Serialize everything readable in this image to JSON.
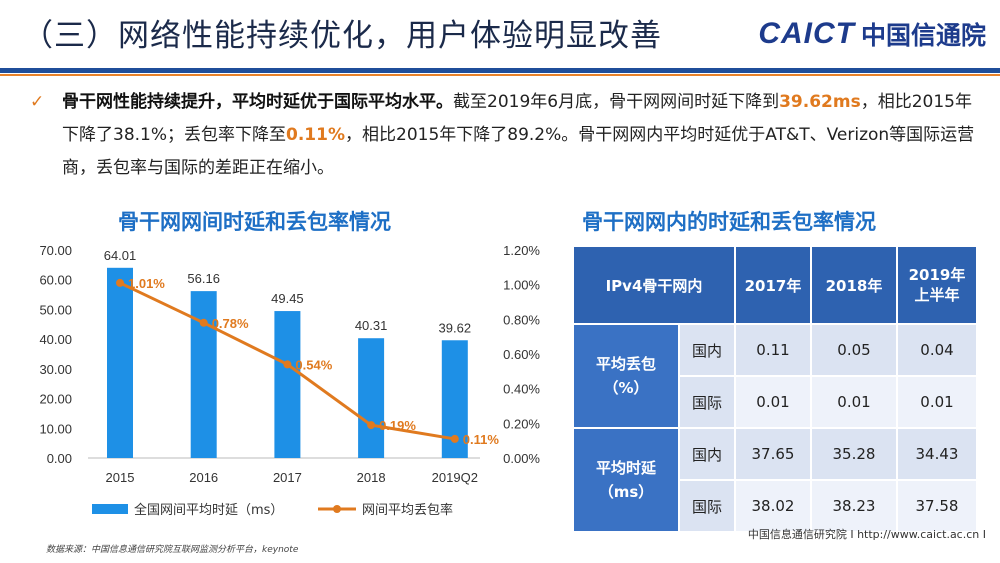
{
  "header": {
    "title": "（三）网络性能持续优化，用户体验明显改善",
    "logo_en": "CAICT",
    "logo_cn": "中国信通院"
  },
  "summary": {
    "lead": "骨干网性能持续提升，平均时延优于国际平均水平。",
    "t1": "截至2019年6月底，骨干网网间时延下降到",
    "v1": "39.62ms",
    "t2": "，相比2015年下降了38.1%；丢包率下降至",
    "v2": "0.11%",
    "t3": "，相比2015年下降了89.2%。骨干网网内平均时延优于AT&T、Verizon等国际运营商，丢包率与国际的差距正在缩小。"
  },
  "chart_title": "骨干网网间时延和丢包率情况",
  "table_title": "骨干网网内的时延和丢包率情况",
  "chart_data": {
    "type": "bar",
    "categories": [
      "2015",
      "2016",
      "2017",
      "2018",
      "2019Q2"
    ],
    "series": [
      {
        "name": "全国网间平均时延（ms）",
        "kind": "bar",
        "axis": "left",
        "values": [
          64.01,
          56.16,
          49.45,
          40.31,
          39.62
        ],
        "labels": [
          "64.01",
          "56.16",
          "49.45",
          "40.31",
          "39.62"
        ],
        "color": "#1e90e6"
      },
      {
        "name": "网间平均丢包率",
        "kind": "line",
        "axis": "right",
        "values": [
          1.01,
          0.78,
          0.54,
          0.19,
          0.11
        ],
        "labels": [
          "1.01%",
          "0.78%",
          "0.54%",
          "0.19%",
          "0.11%"
        ],
        "color": "#e07a1f"
      }
    ],
    "ylim_left": [
      0,
      70
    ],
    "yticks_left": [
      "0.00",
      "10.00",
      "20.00",
      "30.00",
      "40.00",
      "50.00",
      "60.00",
      "70.00"
    ],
    "ylim_right": [
      0,
      1.2
    ],
    "yticks_right": [
      "0.00%",
      "0.20%",
      "0.40%",
      "0.60%",
      "0.80%",
      "1.00%",
      "1.20%"
    ],
    "legend_position": "bottom"
  },
  "table": {
    "corner": "IPv4骨干网内",
    "years": [
      "2017年",
      "2018年",
      "2019年\n上半年"
    ],
    "groups": [
      {
        "label": "平均丢包\n（%）",
        "rows": [
          {
            "sub": "国内",
            "vals": [
              "0.11",
              "0.05",
              "0.04"
            ]
          },
          {
            "sub": "国际",
            "vals": [
              "0.01",
              "0.01",
              "0.01"
            ]
          }
        ]
      },
      {
        "label": "平均时延\n（ms）",
        "rows": [
          {
            "sub": "国内",
            "vals": [
              "37.65",
              "35.28",
              "34.43"
            ]
          },
          {
            "sub": "国际",
            "vals": [
              "38.02",
              "38.23",
              "37.58"
            ]
          }
        ]
      }
    ]
  },
  "footer": {
    "source": "数据来源：中国信息通信研究院互联网监测分析平台，keynote",
    "site": "中国信息通信研究院   I   http://www.caict.ac.cn   I"
  }
}
